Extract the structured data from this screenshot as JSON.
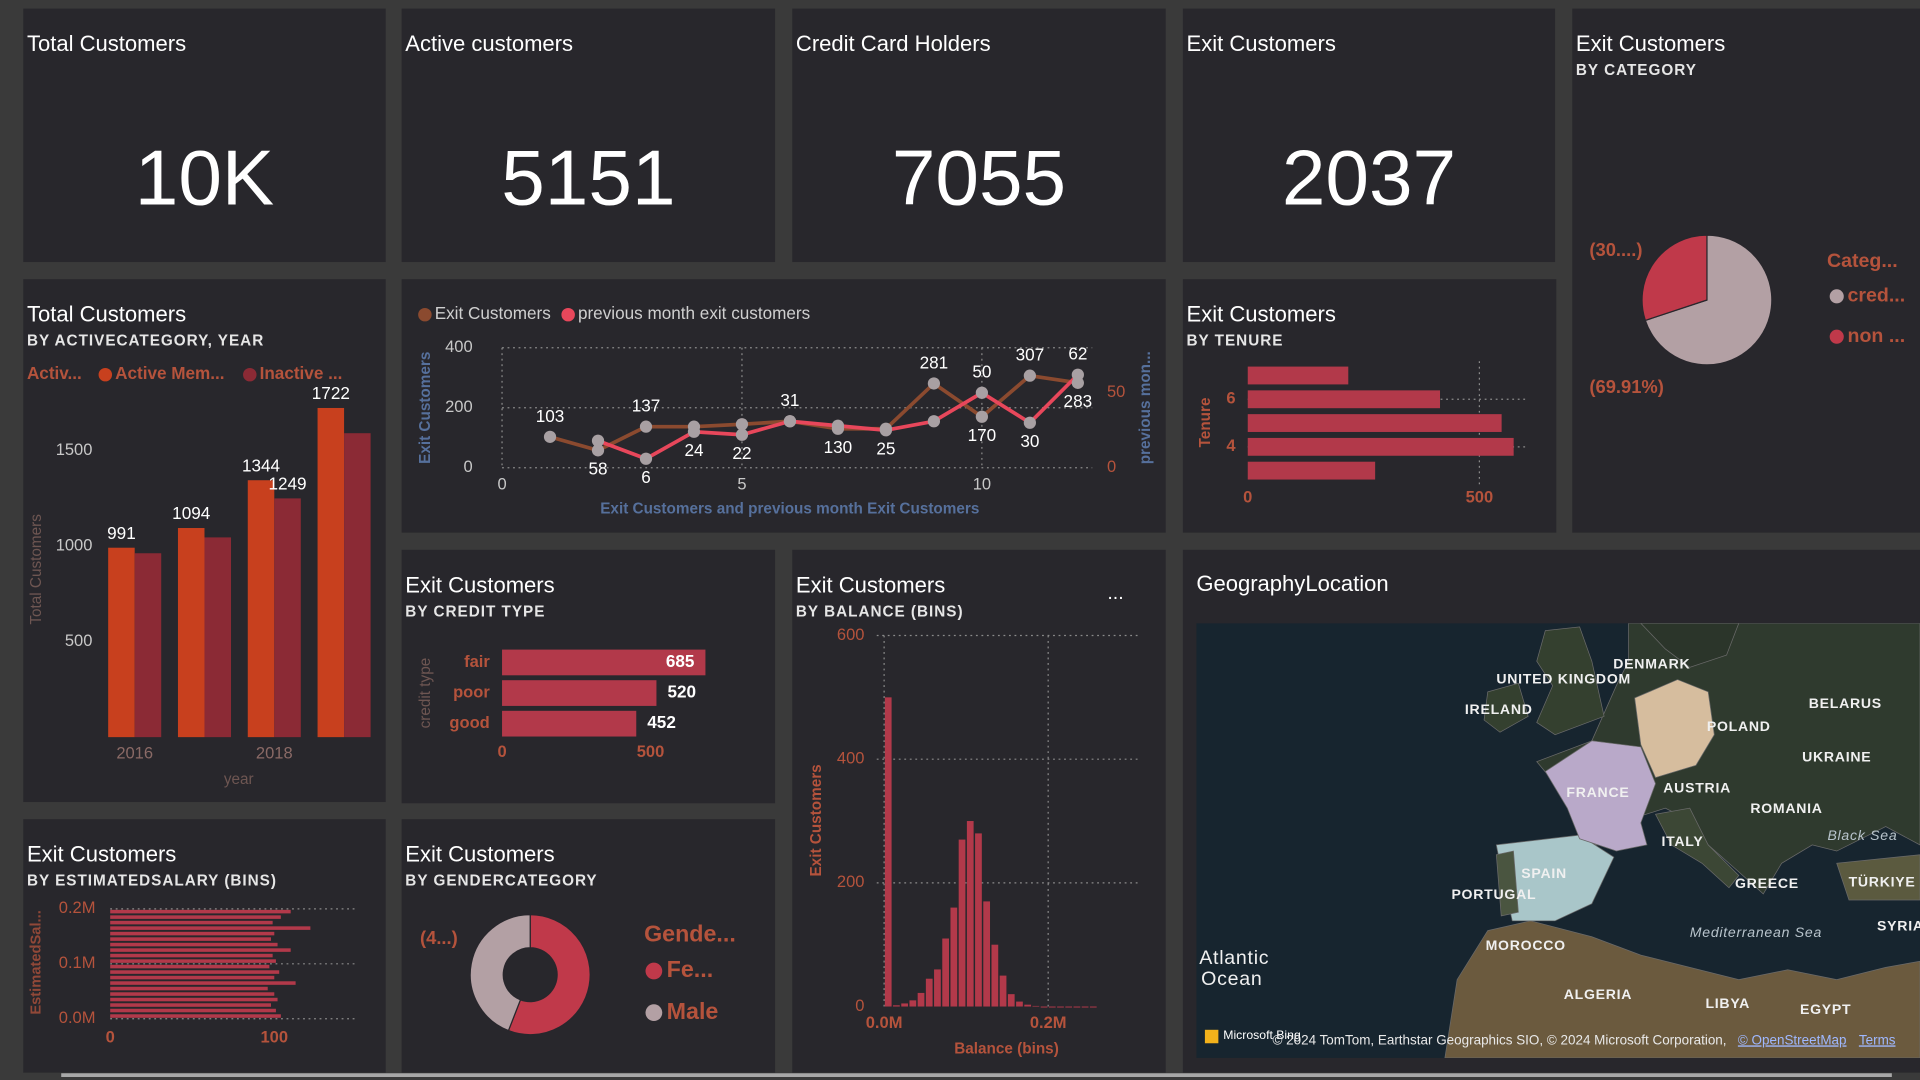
{
  "kpis": [
    {
      "title": "Total Customers",
      "value": "10K"
    },
    {
      "title": "Active customers",
      "value": "5151"
    },
    {
      "title": "Credit Card Holders",
      "value": "7055"
    },
    {
      "title": "Exit Customers",
      "value": "2037"
    }
  ],
  "chart_data": [
    {
      "type": "pie",
      "title": "Exit Customers",
      "subtitle": "BY CATEGORY",
      "legend_title": "Categ...",
      "legend": "right",
      "categories": [
        "cred...",
        "non ..."
      ],
      "values": [
        69.91,
        30.09
      ],
      "value_labels": [
        "(69.91%)",
        "(30....)"
      ],
      "colors": [
        "#b3a0a4",
        "#c0394a"
      ]
    },
    {
      "type": "bar",
      "title": "Total Customers",
      "subtitle": "BY ACTIVECATEGORY, YEAR",
      "legend_title": "Activ...",
      "legend": "top",
      "categories": [
        "2016",
        null,
        "2018",
        null
      ],
      "series": [
        {
          "name": "Active Mem...",
          "color": "#c8401e",
          "values": [
            991,
            1094,
            1344,
            1722
          ],
          "value_labels": [
            "991",
            "1094",
            "1344",
            "1722"
          ]
        },
        {
          "name": "Inactive ...",
          "color": "#8b2a35",
          "values": [
            962,
            1045,
            1249,
            1590
          ],
          "value_labels": [
            null,
            null,
            "1249",
            null
          ]
        }
      ],
      "xlabel": "year",
      "ylabel": "Total Customers",
      "ylim": [
        0,
        1800
      ],
      "yticks": [
        500,
        1000,
        1500
      ]
    },
    {
      "type": "line",
      "legend": "top",
      "grid": true,
      "x": [
        1,
        2,
        3,
        4,
        5,
        6,
        7,
        8,
        9,
        10,
        11,
        12
      ],
      "series": [
        {
          "name": "Exit Customers",
          "color": "#8b4a2f",
          "values": [
            103,
            58,
            137,
            137,
            145,
            155,
            130,
            130,
            281,
            170,
            307,
            283
          ],
          "value_labels": [
            "103",
            "58",
            "137",
            null,
            null,
            null,
            "130",
            null,
            "281",
            "170",
            "307",
            "283"
          ]
        },
        {
          "name": "previous month exit customers",
          "color": "#e8475b",
          "axis": "y2",
          "values": [
            null,
            18,
            6,
            24,
            22,
            31,
            28,
            25,
            31,
            50,
            30,
            62
          ],
          "value_labels": [
            null,
            null,
            "6",
            "24",
            "22",
            "31",
            null,
            "25",
            null,
            "50",
            "30",
            "62"
          ]
        }
      ],
      "xlim": [
        0,
        12.3
      ],
      "xticks": [
        0,
        5,
        10
      ],
      "ylim": [
        0,
        400
      ],
      "yticks": [
        0,
        200,
        400
      ],
      "y2lim": [
        0,
        80
      ],
      "y2ticks": [
        0,
        50
      ],
      "xlabel": "Exit Customers and previous month Exit Customers",
      "ylabel": "Exit Customers",
      "y2label": "previous mon..."
    },
    {
      "type": "bar",
      "orientation": "horizontal",
      "title": "Exit Customers",
      "subtitle": "BY TENURE",
      "grid": true,
      "y": [
        7,
        6,
        5,
        4,
        3
      ],
      "values": [
        217,
        415,
        548,
        574,
        275
      ],
      "color": "#b2394a",
      "ylim": [
        2.4,
        7.6
      ],
      "yticks": [
        4,
        6
      ],
      "xlim": [
        0,
        600
      ],
      "xticks": [
        0,
        500
      ],
      "ylabel": "Tenure"
    },
    {
      "type": "bar",
      "orientation": "horizontal",
      "title": "Exit Customers",
      "subtitle": "BY CREDIT TYPE",
      "categories": [
        "fair",
        "poor",
        "good"
      ],
      "values": [
        685,
        520,
        452
      ],
      "color": "#b2394a",
      "xlim": [
        0,
        800
      ],
      "xticks": [
        0,
        500
      ],
      "ylabel": "credit type"
    },
    {
      "type": "histogram",
      "title": "Exit Customers",
      "subtitle": "BY BALANCE (BINS)",
      "menu": "...",
      "grid": true,
      "bins": [
        0,
        10000,
        20000,
        30000,
        40000,
        50000,
        60000,
        70000,
        80000,
        90000,
        100000,
        110000,
        120000,
        130000,
        140000,
        150000,
        160000,
        170000,
        180000,
        190000,
        200000,
        210000,
        220000,
        230000,
        240000,
        250000,
        260000
      ],
      "values": [
        500,
        2,
        5,
        10,
        22,
        45,
        60,
        110,
        160,
        270,
        300,
        280,
        170,
        100,
        50,
        20,
        8,
        3,
        1,
        0,
        0,
        0,
        0,
        0,
        0,
        0
      ],
      "color": "#b2394a",
      "xlim": [
        -9000,
        310000
      ],
      "xticks": [
        {
          "value": 0,
          "label": "0.0M"
        },
        {
          "value": 200000,
          "label": "0.2M"
        }
      ],
      "ylim": [
        0,
        600
      ],
      "yticks": [
        0,
        200,
        400,
        600
      ],
      "xlabel": "Balance (bins)",
      "ylabel": "Exit Customers"
    },
    {
      "type": "donut",
      "title": "Exit Customers",
      "subtitle": "BY GENDERCATEGORY",
      "legend_title": "Gende...",
      "legend": "right",
      "categories": [
        "Fe...",
        "Male"
      ],
      "values": [
        55.9,
        44.1
      ],
      "value_labels": [
        null,
        "(4...)"
      ],
      "colors": [
        "#c0394a",
        "#b3a0a4"
      ]
    },
    {
      "type": "histogram",
      "orientation": "horizontal",
      "title": "Exit Customers",
      "subtitle": "BY ESTIMATEDSALARY (BINS)",
      "grid": true,
      "bins": [
        0,
        10000,
        20000,
        30000,
        40000,
        50000,
        60000,
        70000,
        80000,
        90000,
        100000,
        110000,
        120000,
        130000,
        140000,
        150000,
        160000,
        170000,
        180000,
        190000,
        200000
      ],
      "values": [
        104,
        101,
        98,
        102,
        100,
        96,
        113,
        100,
        103,
        97,
        101,
        99,
        110,
        102,
        98,
        100,
        122,
        99,
        104,
        110
      ],
      "color": "#b2394a",
      "ylim": [
        0,
        205000
      ],
      "yticks": [
        {
          "value": 0,
          "label": "0.0M"
        },
        {
          "value": 100000,
          "label": "0.1M"
        },
        {
          "value": 200000,
          "label": "0.2M"
        }
      ],
      "xlim": [
        0,
        150
      ],
      "xticks": [
        0,
        100
      ],
      "ylabel": "EstimatedSal..."
    }
  ],
  "map": {
    "title": "GeographyLocation",
    "labels": [
      "UNITED KINGDOM",
      "DENMARK",
      "IRELAND",
      "BELARUS",
      "POLAND",
      "UKRAINE",
      "FRANCE",
      "AUSTRIA",
      "ROMANIA",
      "ITALY",
      "Black Sea",
      "SPAIN",
      "PORTUGAL",
      "GREECE",
      "TÜRKIYE",
      "Mediterranean Sea",
      "SYRIA",
      "MOROCCO",
      "Atlantic",
      "Ocean",
      "ALGERIA",
      "LIBYA",
      "EGYPT"
    ],
    "attribution": {
      "logo": "Microsoft Bing",
      "text": "© 2024 TomTom, Earthstar Geographics SIO, © 2024 Microsoft Corporation,",
      "links": [
        "© OpenStreetMap",
        "Terms"
      ]
    }
  }
}
